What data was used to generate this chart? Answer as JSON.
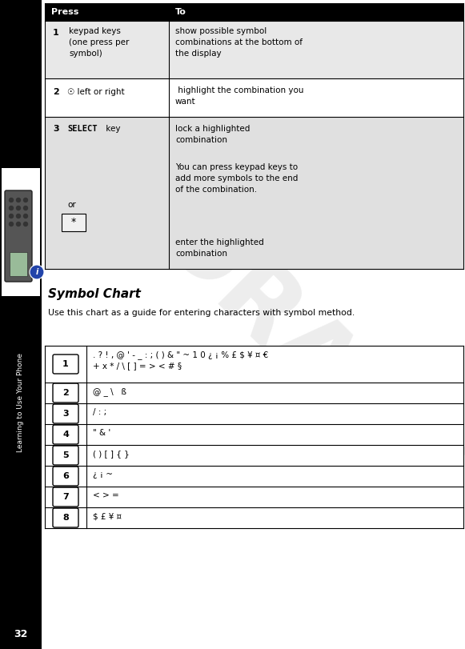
{
  "page_number": "32",
  "sidebar_title": "Learning to Use Your Phone",
  "sidebar_bg": "#000000",
  "page_bg": "#ffffff",
  "title": "Symbol Chart",
  "subtitle": "Use this chart as a guide for entering characters with symbol method.",
  "header_bg": "#000000",
  "header_fg": "#ffffff",
  "row1_bg": "#e8e8e8",
  "row2_bg": "#ffffff",
  "row3_bg": "#e0e0e0",
  "symbol_rows": [
    [
      "1",
      ". ? ! , @ ' - _ : ; ( ) & \" ~ 1 0 ¿ ¡ % £ $ ¥ ¤ €\n+ x * / \\ [ ] = > < # §"
    ],
    [
      "2",
      "@ _ \\   ß"
    ],
    [
      "3",
      "/ : ;"
    ],
    [
      "4",
      "\" & '"
    ],
    [
      "5",
      "( ) [ ] { }"
    ],
    [
      "6",
      "¿ ¡ ~"
    ],
    [
      "7",
      "< > ="
    ],
    [
      "8",
      "$ £ ¥ ¤"
    ]
  ],
  "fig_w": 5.81,
  "fig_h": 8.11,
  "dpi": 100
}
